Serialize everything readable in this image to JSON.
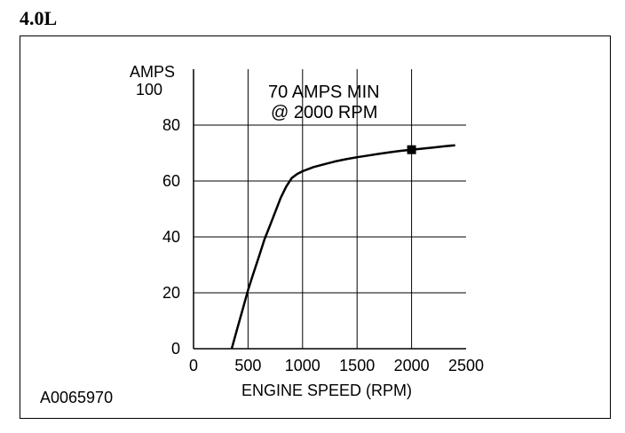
{
  "heading": "4.0L",
  "figure_id": "A0065970",
  "chart_data": {
    "type": "line",
    "title": "",
    "xlabel": "ENGINE SPEED (RPM)",
    "ylabel": "AMPS",
    "xlim": [
      0,
      2500
    ],
    "ylim": [
      0,
      100
    ],
    "xticks": [
      "0",
      "500",
      "1000",
      "1500",
      "2000",
      "2500"
    ],
    "yticks": [
      "0",
      "20",
      "40",
      "60",
      "80",
      "100"
    ],
    "grid": true,
    "series": [
      {
        "x": [
          350,
          400,
          450,
          500,
          550,
          600,
          650,
          700,
          750,
          800,
          850,
          900,
          950,
          1000,
          1100,
          1200,
          1300,
          1400,
          1500,
          1600,
          1700,
          1800,
          1900,
          2000,
          2100,
          2200,
          2300,
          2400
        ],
        "y": [
          0,
          7,
          14,
          21,
          27,
          33,
          39,
          44,
          49,
          54,
          58,
          61,
          62.5,
          63.5,
          65,
          66,
          67,
          67.8,
          68.5,
          69.1,
          69.7,
          70.3,
          70.8,
          71.2,
          71.6,
          72,
          72.4,
          72.8
        ]
      }
    ],
    "annotations": [
      {
        "text": "70 AMPS MIN",
        "x": 2000,
        "y": 71.2,
        "marker": "square"
      },
      {
        "text": "@ 2000 RPM"
      }
    ]
  }
}
